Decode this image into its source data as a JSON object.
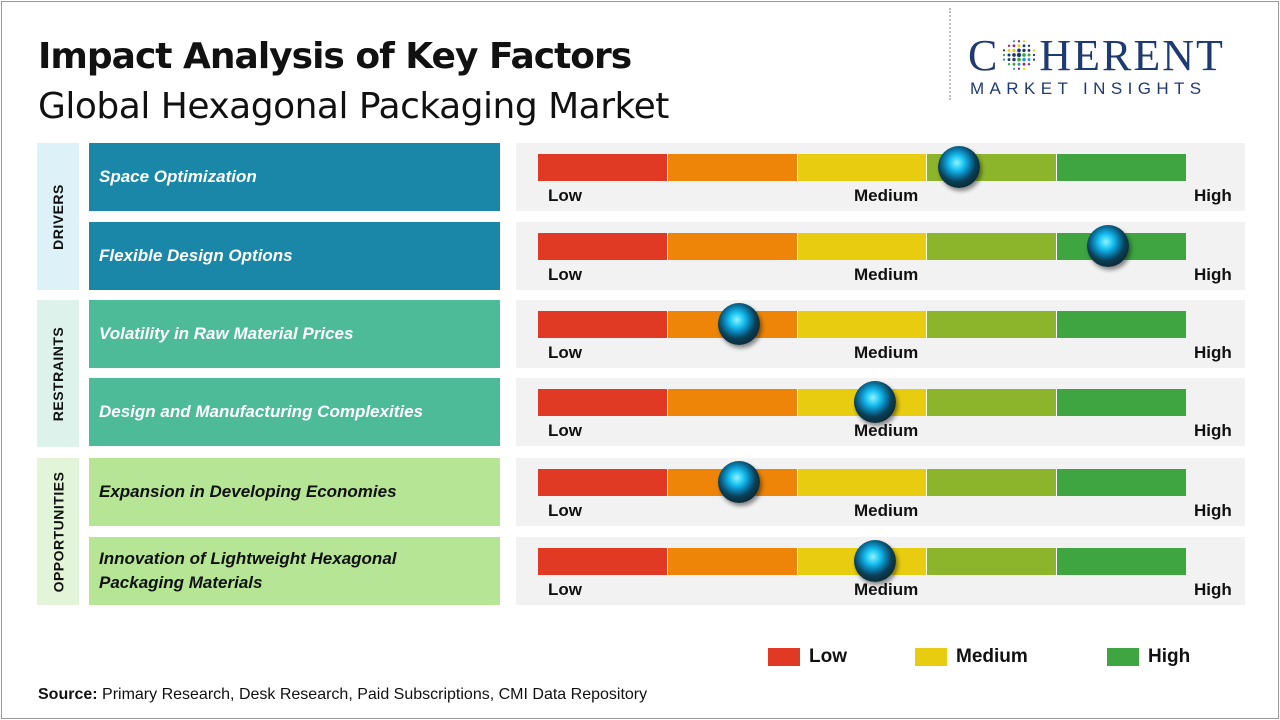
{
  "title": "Impact Analysis of Key Factors",
  "subtitle": "Global Hexagonal Packaging Market",
  "logo": {
    "main_left": "C",
    "main_right": "HERENT",
    "sub": "MARKET INSIGHTS"
  },
  "colors": {
    "segments": [
      "#e03a24",
      "#ee8509",
      "#e8cc10",
      "#8db52c",
      "#3ea540"
    ],
    "drivers_cat": "#dcf1f8",
    "drivers_factor": "#1b87a8",
    "restraints_cat": "#def2ec",
    "restraints_factor": "#4dbb98",
    "opportunities_cat": "#e3f5d8",
    "opportunities_factor": "#b7e596",
    "legend_low": "#e03a24",
    "legend_medium": "#e8cc10",
    "legend_high": "#3ea540"
  },
  "scale_labels": {
    "low": "Low",
    "medium": "Medium",
    "high": "High"
  },
  "chart_data": {
    "type": "table",
    "title": "Impact Analysis of Key Factors",
    "subtitle": "Global Hexagonal Packaging Market",
    "scale": [
      "Low",
      "Medium",
      "High"
    ],
    "groups": [
      {
        "name": "DRIVERS",
        "factors": [
          {
            "name": "Space Optimization",
            "impact": 0.65
          },
          {
            "name": "Flexible Design Options",
            "impact": 0.88
          }
        ]
      },
      {
        "name": "RESTRAINTS",
        "factors": [
          {
            "name": "Volatility  in Raw Material  Prices",
            "impact": 0.31
          },
          {
            "name": "Design  and Manufacturing  Complexities",
            "impact": 0.52
          }
        ]
      },
      {
        "name": "OPPORTUNITIES",
        "factors": [
          {
            "name": "Expansion  in Developing  Economies",
            "impact": 0.31
          },
          {
            "name": "Innovation  of Lightweight  Hexagonal Packaging Materials",
            "impact": 0.52
          }
        ]
      }
    ],
    "legend": [
      "Low",
      "Medium",
      "High"
    ]
  },
  "source": {
    "label": "Source:",
    "text": " Primary Research, Desk Research, Paid Subscriptions, CMI Data Repository"
  }
}
